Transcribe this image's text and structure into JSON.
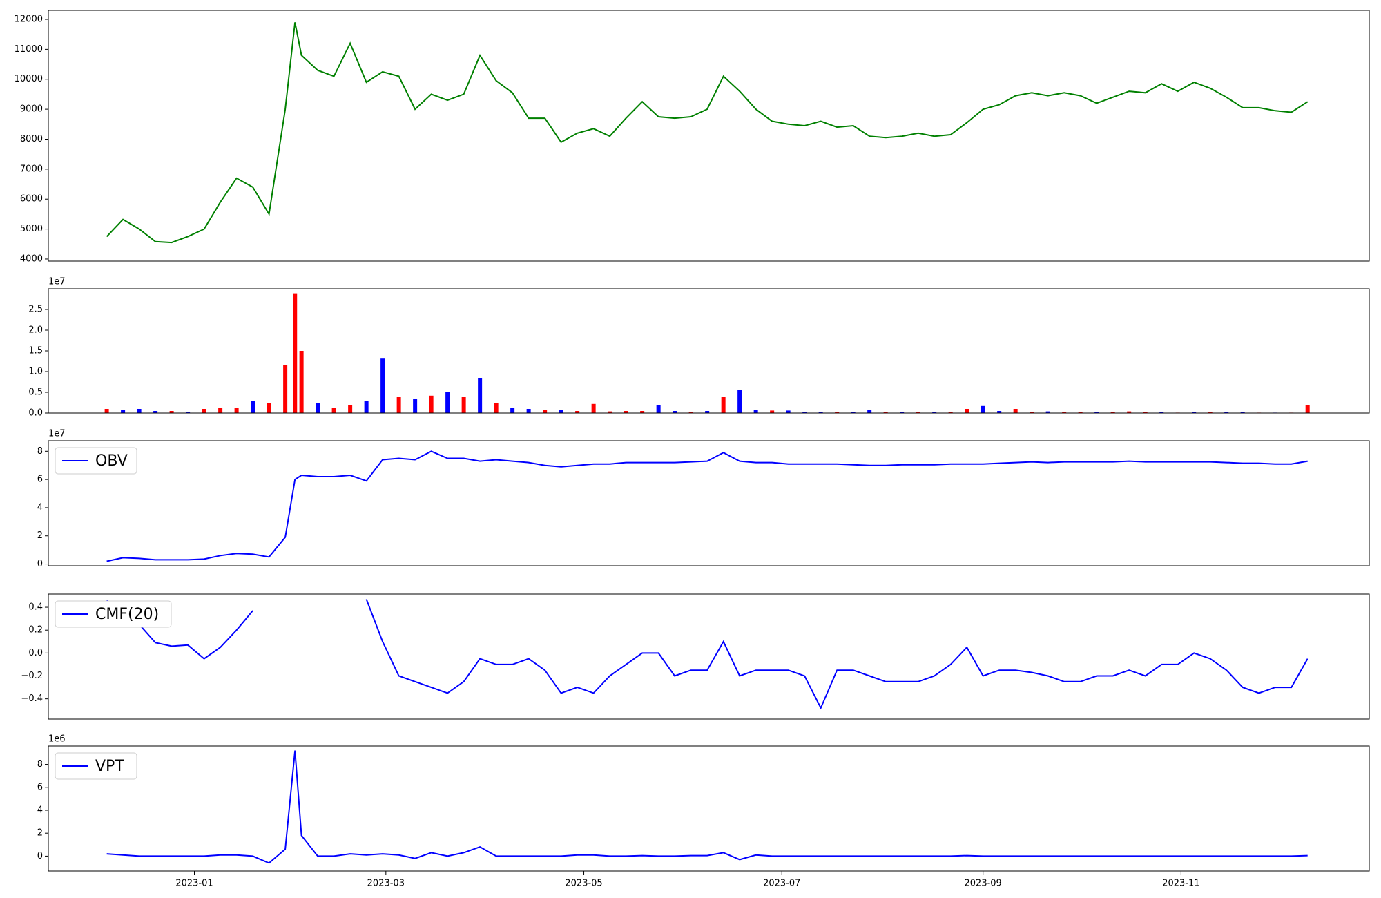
{
  "chart_data": [
    {
      "type": "line",
      "x": [
        "2022-12-05",
        "2022-12-10",
        "2022-12-15",
        "2022-12-20",
        "2022-12-25",
        "2022-12-30",
        "2023-01-04",
        "2023-01-09",
        "2023-01-14",
        "2023-01-19",
        "2023-01-24",
        "2023-01-29",
        "2023-02-01",
        "2023-02-03",
        "2023-02-08",
        "2023-02-13",
        "2023-02-18",
        "2023-02-23",
        "2023-02-28",
        "2023-03-05",
        "2023-03-10",
        "2023-03-15",
        "2023-03-20",
        "2023-03-25",
        "2023-03-30",
        "2023-04-04",
        "2023-04-09",
        "2023-04-14",
        "2023-04-19",
        "2023-04-24",
        "2023-04-29",
        "2023-05-04",
        "2023-05-09",
        "2023-05-14",
        "2023-05-19",
        "2023-05-24",
        "2023-05-29",
        "2023-06-03",
        "2023-06-08",
        "2023-06-13",
        "2023-06-18",
        "2023-06-23",
        "2023-06-28",
        "2023-07-03",
        "2023-07-08",
        "2023-07-13",
        "2023-07-18",
        "2023-07-23",
        "2023-07-28",
        "2023-08-02",
        "2023-08-07",
        "2023-08-12",
        "2023-08-17",
        "2023-08-22",
        "2023-08-27",
        "2023-09-01",
        "2023-09-06",
        "2023-09-11",
        "2023-09-16",
        "2023-09-21",
        "2023-09-26",
        "2023-10-01",
        "2023-10-06",
        "2023-10-11",
        "2023-10-16",
        "2023-10-21",
        "2023-10-26",
        "2023-10-31",
        "2023-11-05",
        "2023-11-10",
        "2023-11-15",
        "2023-11-20",
        "2023-11-25",
        "2023-11-30",
        "2023-12-05",
        "2023-12-10"
      ],
      "series": [
        {
          "color": "green",
          "values": [
            4750,
            5320,
            5000,
            4580,
            4550,
            4750,
            5000,
            5900,
            6700,
            6400,
            5500,
            9000,
            11900,
            10800,
            10300,
            10100,
            11200,
            9900,
            10250,
            10100,
            9000,
            9500,
            9300,
            9500,
            10800,
            9950,
            9550,
            8700,
            8700,
            7900,
            8200,
            8350,
            8100,
            8700,
            9250,
            8750,
            8700,
            8750,
            9000,
            10100,
            9600,
            9000,
            8600,
            8500,
            8450,
            8600,
            8400,
            8450,
            8100,
            8050,
            8100,
            8200,
            8100,
            8150,
            8550,
            9000,
            9150,
            9450,
            9550,
            9450,
            9550,
            9450,
            9200,
            9400,
            9600,
            9550,
            9850,
            9600,
            9900,
            9700,
            9400,
            9050,
            9050,
            8950,
            8900,
            9250
          ]
        }
      ],
      "xlim": [
        "2022-11-17",
        "2023-12-29"
      ],
      "ylim": [
        3930,
        12300
      ],
      "yticks": [
        4000,
        5000,
        6000,
        7000,
        8000,
        9000,
        10000,
        11000,
        12000
      ]
    },
    {
      "type": "bar",
      "x": [
        "2022-12-05",
        "2022-12-10",
        "2022-12-15",
        "2022-12-20",
        "2022-12-25",
        "2022-12-30",
        "2023-01-04",
        "2023-01-09",
        "2023-01-14",
        "2023-01-19",
        "2023-01-24",
        "2023-01-29",
        "2023-02-01",
        "2023-02-03",
        "2023-02-08",
        "2023-02-13",
        "2023-02-18",
        "2023-02-23",
        "2023-02-28",
        "2023-03-05",
        "2023-03-10",
        "2023-03-15",
        "2023-03-20",
        "2023-03-25",
        "2023-03-30",
        "2023-04-04",
        "2023-04-09",
        "2023-04-14",
        "2023-04-19",
        "2023-04-24",
        "2023-04-29",
        "2023-05-04",
        "2023-05-09",
        "2023-05-14",
        "2023-05-19",
        "2023-05-24",
        "2023-05-29",
        "2023-06-03",
        "2023-06-08",
        "2023-06-13",
        "2023-06-18",
        "2023-06-23",
        "2023-06-28",
        "2023-07-03",
        "2023-07-08",
        "2023-07-13",
        "2023-07-18",
        "2023-07-23",
        "2023-07-28",
        "2023-08-02",
        "2023-08-07",
        "2023-08-12",
        "2023-08-17",
        "2023-08-22",
        "2023-08-27",
        "2023-09-01",
        "2023-09-06",
        "2023-09-11",
        "2023-09-16",
        "2023-09-21",
        "2023-09-26",
        "2023-10-01",
        "2023-10-06",
        "2023-10-11",
        "2023-10-16",
        "2023-10-21",
        "2023-10-26",
        "2023-10-31",
        "2023-11-05",
        "2023-11-10",
        "2023-11-15",
        "2023-11-20",
        "2023-11-25",
        "2023-11-30",
        "2023-12-05",
        "2023-12-10"
      ],
      "values": [
        0.1,
        0.08,
        0.1,
        0.05,
        0.05,
        0.03,
        0.1,
        0.12,
        0.12,
        0.3,
        0.25,
        1.15,
        2.89,
        1.5,
        0.25,
        0.12,
        0.2,
        0.3,
        1.33,
        0.4,
        0.35,
        0.42,
        0.5,
        0.4,
        0.85,
        0.25,
        0.12,
        0.1,
        0.08,
        0.08,
        0.05,
        0.22,
        0.04,
        0.05,
        0.05,
        0.2,
        0.05,
        0.03,
        0.05,
        0.4,
        0.55,
        0.08,
        0.06,
        0.06,
        0.03,
        0.02,
        0.02,
        0.03,
        0.08,
        0.02,
        0.02,
        0.02,
        0.02,
        0.02,
        0.1,
        0.17,
        0.05,
        0.1,
        0.03,
        0.04,
        0.03,
        0.02,
        0.02,
        0.02,
        0.04,
        0.03,
        0.02,
        0.01,
        0.02,
        0.02,
        0.03,
        0.02,
        0.01,
        0.01,
        0.01,
        0.2
      ],
      "colors": [
        "red",
        "blue",
        "blue",
        "blue",
        "red",
        "blue",
        "red",
        "red",
        "red",
        "blue",
        "red",
        "red",
        "red",
        "red",
        "blue",
        "red",
        "red",
        "blue",
        "blue",
        "red",
        "blue",
        "red",
        "blue",
        "red",
        "blue",
        "red",
        "blue",
        "blue",
        "red",
        "blue",
        "red",
        "red",
        "red",
        "red",
        "red",
        "blue",
        "blue",
        "red",
        "blue",
        "red",
        "blue",
        "blue",
        "red",
        "blue",
        "blue",
        "blue",
        "red",
        "blue",
        "blue",
        "red",
        "blue",
        "red",
        "blue",
        "red",
        "red",
        "blue",
        "blue",
        "red",
        "red",
        "blue",
        "red",
        "red",
        "blue",
        "red",
        "red",
        "red",
        "blue",
        "red",
        "blue",
        "red",
        "blue",
        "blue",
        "red",
        "blue",
        "red",
        "red"
      ],
      "offset_text": "1e7",
      "xlim": [
        "2022-11-17",
        "2023-12-29"
      ],
      "ylim": [
        0,
        3.0
      ],
      "yticks": [
        {
          "value": 0,
          "label": "0.0"
        },
        0.5,
        {
          "value": 1,
          "label": "1.0"
        },
        1.5,
        {
          "value": 2,
          "label": "2.0"
        },
        2.5
      ]
    },
    {
      "type": "line",
      "x": [
        "2022-12-05",
        "2022-12-10",
        "2022-12-15",
        "2022-12-20",
        "2022-12-25",
        "2022-12-30",
        "2023-01-04",
        "2023-01-09",
        "2023-01-14",
        "2023-01-19",
        "2023-01-24",
        "2023-01-29",
        "2023-02-01",
        "2023-02-03",
        "2023-02-08",
        "2023-02-13",
        "2023-02-18",
        "2023-02-23",
        "2023-02-28",
        "2023-03-05",
        "2023-03-10",
        "2023-03-15",
        "2023-03-20",
        "2023-03-25",
        "2023-03-30",
        "2023-04-04",
        "2023-04-09",
        "2023-04-14",
        "2023-04-19",
        "2023-04-24",
        "2023-04-29",
        "2023-05-04",
        "2023-05-09",
        "2023-05-14",
        "2023-05-19",
        "2023-05-24",
        "2023-05-29",
        "2023-06-03",
        "2023-06-08",
        "2023-06-13",
        "2023-06-18",
        "2023-06-23",
        "2023-06-28",
        "2023-07-03",
        "2023-07-08",
        "2023-07-13",
        "2023-07-18",
        "2023-07-23",
        "2023-07-28",
        "2023-08-02",
        "2023-08-07",
        "2023-08-12",
        "2023-08-17",
        "2023-08-22",
        "2023-08-27",
        "2023-09-01",
        "2023-09-06",
        "2023-09-11",
        "2023-09-16",
        "2023-09-21",
        "2023-09-26",
        "2023-10-01",
        "2023-10-06",
        "2023-10-11",
        "2023-10-16",
        "2023-10-21",
        "2023-10-26",
        "2023-10-31",
        "2023-11-05",
        "2023-11-10",
        "2023-11-15",
        "2023-11-20",
        "2023-11-25",
        "2023-11-30",
        "2023-12-05",
        "2023-12-10"
      ],
      "series": [
        {
          "name": "OBV",
          "color": "blue",
          "values": [
            0.2,
            0.45,
            0.4,
            0.3,
            0.3,
            0.3,
            0.35,
            0.6,
            0.75,
            0.7,
            0.5,
            1.9,
            6.0,
            6.3,
            6.2,
            6.2,
            6.3,
            5.9,
            7.4,
            7.5,
            7.4,
            8.0,
            7.5,
            7.5,
            7.3,
            7.4,
            7.3,
            7.2,
            7.0,
            6.9,
            7.0,
            7.1,
            7.1,
            7.2,
            7.2,
            7.2,
            7.2,
            7.25,
            7.3,
            7.9,
            7.3,
            7.2,
            7.2,
            7.1,
            7.1,
            7.1,
            7.1,
            7.05,
            7.0,
            7.0,
            7.05,
            7.05,
            7.05,
            7.1,
            7.1,
            7.1,
            7.15,
            7.2,
            7.25,
            7.2,
            7.25,
            7.25,
            7.25,
            7.25,
            7.3,
            7.25,
            7.25,
            7.25,
            7.25,
            7.25,
            7.2,
            7.15,
            7.15,
            7.1,
            7.1,
            7.3
          ]
        }
      ],
      "offset_text": "1e7",
      "legend": "upper left",
      "xlim": [
        "2022-11-17",
        "2023-12-29"
      ],
      "ylim": [
        -0.12,
        8.75
      ],
      "yticks": [
        0,
        2,
        4,
        6,
        8
      ]
    },
    {
      "type": "line",
      "x": [
        "2022-12-05",
        "2022-12-10",
        "2022-12-15",
        "2022-12-20",
        "2022-12-25",
        "2022-12-30",
        "2023-01-04",
        "2023-01-09",
        "2023-01-14",
        "2023-01-19",
        "2023-01-24",
        "2023-01-29",
        "2023-02-01",
        "2023-02-03",
        "2023-02-08",
        "2023-02-13",
        "2023-02-18",
        "2023-02-23",
        "2023-02-28",
        "2023-03-05",
        "2023-03-10",
        "2023-03-15",
        "2023-03-20",
        "2023-03-25",
        "2023-03-30",
        "2023-04-04",
        "2023-04-09",
        "2023-04-14",
        "2023-04-19",
        "2023-04-24",
        "2023-04-29",
        "2023-05-04",
        "2023-05-09",
        "2023-05-14",
        "2023-05-19",
        "2023-05-24",
        "2023-05-29",
        "2023-06-03",
        "2023-06-08",
        "2023-06-13",
        "2023-06-18",
        "2023-06-23",
        "2023-06-28",
        "2023-07-03",
        "2023-07-08",
        "2023-07-13",
        "2023-07-18",
        "2023-07-23",
        "2023-07-28",
        "2023-08-02",
        "2023-08-07",
        "2023-08-12",
        "2023-08-17",
        "2023-08-22",
        "2023-08-27",
        "2023-09-01",
        "2023-09-06",
        "2023-09-11",
        "2023-09-16",
        "2023-09-21",
        "2023-09-26",
        "2023-10-01",
        "2023-10-06",
        "2023-10-11",
        "2023-10-16",
        "2023-10-21",
        "2023-10-26",
        "2023-10-31",
        "2023-11-05",
        "2023-11-10",
        "2023-11-15",
        "2023-11-20",
        "2023-11-25",
        "2023-11-30",
        "2023-12-05",
        "2023-12-10"
      ],
      "series": [
        {
          "name": "CMF(20)",
          "color": "blue",
          "values": [
            0.46,
            0.35,
            0.25,
            0.09,
            0.06,
            0.07,
            -0.05,
            0.05,
            0.2,
            0.37,
            null,
            null,
            null,
            null,
            null,
            null,
            null,
            0.47,
            0.1,
            -0.2,
            -0.25,
            -0.3,
            -0.35,
            -0.25,
            -0.05,
            -0.1,
            -0.1,
            -0.05,
            -0.15,
            -0.35,
            -0.3,
            -0.35,
            -0.2,
            -0.1,
            0.0,
            0.0,
            -0.2,
            -0.15,
            -0.15,
            0.1,
            -0.2,
            -0.15,
            -0.15,
            -0.15,
            -0.2,
            -0.48,
            -0.15,
            -0.15,
            -0.2,
            -0.25,
            -0.25,
            -0.25,
            -0.2,
            -0.1,
            0.05,
            -0.2,
            -0.15,
            -0.15,
            -0.17,
            -0.2,
            -0.25,
            -0.25,
            -0.2,
            -0.2,
            -0.15,
            -0.2,
            -0.1,
            -0.1,
            0.0,
            -0.05,
            -0.15,
            -0.3,
            -0.35,
            -0.3,
            -0.3,
            -0.05
          ]
        }
      ],
      "legend": "upper left",
      "xlim": [
        "2022-11-17",
        "2023-12-29"
      ],
      "ylim": [
        -0.577,
        0.515
      ],
      "yticks": [
        {
          "value": -0.4,
          "label": "−0.4"
        },
        {
          "value": -0.2,
          "label": "−0.2"
        },
        {
          "value": 0,
          "label": "0.0"
        },
        0.2,
        0.4
      ]
    },
    {
      "type": "line",
      "x": [
        "2022-12-05",
        "2022-12-10",
        "2022-12-15",
        "2022-12-20",
        "2022-12-25",
        "2022-12-30",
        "2023-01-04",
        "2023-01-09",
        "2023-01-14",
        "2023-01-19",
        "2023-01-24",
        "2023-01-29",
        "2023-02-01",
        "2023-02-03",
        "2023-02-08",
        "2023-02-13",
        "2023-02-18",
        "2023-02-23",
        "2023-02-28",
        "2023-03-05",
        "2023-03-10",
        "2023-03-15",
        "2023-03-20",
        "2023-03-25",
        "2023-03-30",
        "2023-04-04",
        "2023-04-09",
        "2023-04-14",
        "2023-04-19",
        "2023-04-24",
        "2023-04-29",
        "2023-05-04",
        "2023-05-09",
        "2023-05-14",
        "2023-05-19",
        "2023-05-24",
        "2023-05-29",
        "2023-06-03",
        "2023-06-08",
        "2023-06-13",
        "2023-06-18",
        "2023-06-23",
        "2023-06-28",
        "2023-07-03",
        "2023-07-08",
        "2023-07-13",
        "2023-07-18",
        "2023-07-23",
        "2023-07-28",
        "2023-08-02",
        "2023-08-07",
        "2023-08-12",
        "2023-08-17",
        "2023-08-22",
        "2023-08-27",
        "2023-09-01",
        "2023-09-06",
        "2023-09-11",
        "2023-09-16",
        "2023-09-21",
        "2023-09-26",
        "2023-10-01",
        "2023-10-06",
        "2023-10-11",
        "2023-10-16",
        "2023-10-21",
        "2023-10-26",
        "2023-10-31",
        "2023-11-05",
        "2023-11-10",
        "2023-11-15",
        "2023-11-20",
        "2023-11-25",
        "2023-11-30",
        "2023-12-05",
        "2023-12-10"
      ],
      "series": [
        {
          "name": "VPT",
          "color": "blue",
          "values": [
            0.2,
            0.1,
            0,
            0,
            0,
            0,
            0,
            0.1,
            0.1,
            0,
            -0.6,
            0.6,
            9.2,
            1.8,
            0,
            0,
            0.2,
            0.1,
            0.2,
            0.1,
            -0.2,
            0.3,
            0,
            0.3,
            0.8,
            0,
            0,
            0,
            0,
            0,
            0.1,
            0.1,
            0,
            0,
            0.05,
            0,
            0,
            0.05,
            0.05,
            0.3,
            -0.3,
            0.1,
            0,
            0,
            0,
            0,
            0,
            0,
            0,
            0,
            0,
            0,
            0,
            0,
            0.05,
            0,
            0,
            0,
            0,
            0,
            0,
            0,
            0,
            0,
            0,
            0,
            0,
            0,
            0,
            0,
            0,
            0,
            0,
            0,
            0,
            0.05
          ]
        }
      ],
      "offset_text": "1e6",
      "legend": "upper left",
      "xlim": [
        "2022-11-17",
        "2023-12-29"
      ],
      "ylim": [
        -1.3,
        9.6
      ],
      "yticks": [
        0,
        2,
        4,
        6,
        8
      ],
      "xticks": [
        "2023-01",
        "2023-03",
        "2023-05",
        "2023-07",
        "2023-09",
        "2023-11"
      ]
    }
  ]
}
